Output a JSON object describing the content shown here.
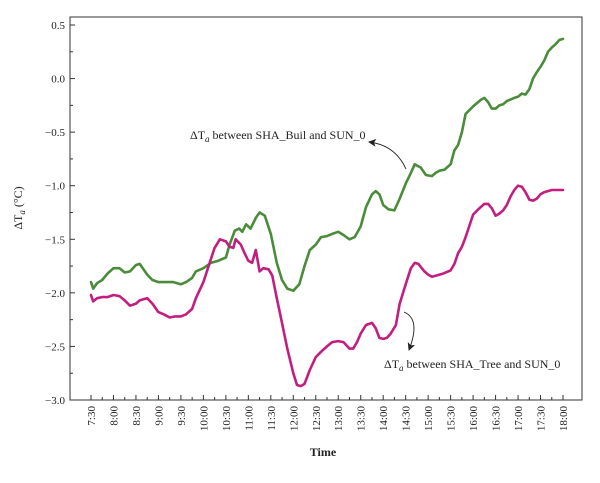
{
  "chart_data": {
    "type": "line",
    "xlabel": "Time",
    "ylabel_symbol": "ΔT",
    "ylabel_sub": "a",
    "ylabel_unit": "(°C)",
    "ylim": [
      -3.0,
      0.5
    ],
    "yticks": [
      0.5,
      0.0,
      -0.5,
      -1.0,
      -1.5,
      -2.0,
      -2.5,
      -3.0
    ],
    "ytick_labels": [
      "0.5",
      "0.0",
      "−0.5",
      "−1.0",
      "−1.5",
      "−2.0",
      "−2.5",
      "−3.0"
    ],
    "xlim": [
      "7:30",
      "18:00"
    ],
    "xtick_labels": [
      "7:30",
      "8:00",
      "8:30",
      "9:00",
      "9:30",
      "10:00",
      "10:30",
      "11:00",
      "11:30",
      "12:00",
      "12:30",
      "13:00",
      "13:30",
      "14:00",
      "14:30",
      "15:00",
      "15:30",
      "16:00",
      "16:30",
      "17:00",
      "17:30",
      "18:00"
    ],
    "grid": false,
    "series": [
      {
        "annotation_prefix": "ΔT",
        "annotation_sub": "a",
        "annotation_rest": " between SHA_Buil and SUN_0",
        "color": "#4a8c3a",
        "points": [
          [
            "7:30",
            -1.9
          ],
          [
            "7:33",
            -1.96
          ],
          [
            "7:38",
            -1.91
          ],
          [
            "7:45",
            -1.88
          ],
          [
            "7:52",
            -1.82
          ],
          [
            "8:00",
            -1.77
          ],
          [
            "8:08",
            -1.77
          ],
          [
            "8:15",
            -1.81
          ],
          [
            "8:22",
            -1.8
          ],
          [
            "8:30",
            -1.74
          ],
          [
            "8:35",
            -1.73
          ],
          [
            "8:45",
            -1.83
          ],
          [
            "8:52",
            -1.88
          ],
          [
            "9:00",
            -1.9
          ],
          [
            "9:10",
            -1.9
          ],
          [
            "9:20",
            -1.9
          ],
          [
            "9:30",
            -1.92
          ],
          [
            "9:37",
            -1.9
          ],
          [
            "9:45",
            -1.86
          ],
          [
            "9:50",
            -1.8
          ],
          [
            "10:00",
            -1.77
          ],
          [
            "10:10",
            -1.72
          ],
          [
            "10:20",
            -1.7
          ],
          [
            "10:30",
            -1.67
          ],
          [
            "10:35",
            -1.55
          ],
          [
            "10:42",
            -1.42
          ],
          [
            "10:48",
            -1.4
          ],
          [
            "10:52",
            -1.43
          ],
          [
            "10:57",
            -1.36
          ],
          [
            "11:03",
            -1.4
          ],
          [
            "11:10",
            -1.3
          ],
          [
            "11:15",
            -1.25
          ],
          [
            "11:22",
            -1.28
          ],
          [
            "11:30",
            -1.45
          ],
          [
            "11:38",
            -1.72
          ],
          [
            "11:45",
            -1.88
          ],
          [
            "11:52",
            -1.96
          ],
          [
            "12:00",
            -1.98
          ],
          [
            "12:08",
            -1.92
          ],
          [
            "12:15",
            -1.75
          ],
          [
            "12:22",
            -1.6
          ],
          [
            "12:30",
            -1.55
          ],
          [
            "12:37",
            -1.48
          ],
          [
            "12:45",
            -1.47
          ],
          [
            "12:52",
            -1.45
          ],
          [
            "13:00",
            -1.43
          ],
          [
            "13:07",
            -1.46
          ],
          [
            "13:15",
            -1.5
          ],
          [
            "13:22",
            -1.48
          ],
          [
            "13:30",
            -1.38
          ],
          [
            "13:37",
            -1.2
          ],
          [
            "13:45",
            -1.08
          ],
          [
            "13:50",
            -1.05
          ],
          [
            "13:55",
            -1.08
          ],
          [
            "14:00",
            -1.18
          ],
          [
            "14:07",
            -1.22
          ],
          [
            "14:15",
            -1.23
          ],
          [
            "14:22",
            -1.12
          ],
          [
            "14:30",
            -0.98
          ],
          [
            "14:37",
            -0.88
          ],
          [
            "14:42",
            -0.8
          ],
          [
            "14:50",
            -0.83
          ],
          [
            "14:57",
            -0.9
          ],
          [
            "15:05",
            -0.91
          ],
          [
            "15:10",
            -0.88
          ],
          [
            "15:15",
            -0.86
          ],
          [
            "15:22",
            -0.85
          ],
          [
            "15:30",
            -0.8
          ],
          [
            "15:35",
            -0.67
          ],
          [
            "15:40",
            -0.62
          ],
          [
            "15:45",
            -0.5
          ],
          [
            "15:50",
            -0.33
          ],
          [
            "16:00",
            -0.26
          ],
          [
            "16:10",
            -0.2
          ],
          [
            "16:15",
            -0.18
          ],
          [
            "16:20",
            -0.22
          ],
          [
            "16:25",
            -0.28
          ],
          [
            "16:30",
            -0.28
          ],
          [
            "16:35",
            -0.25
          ],
          [
            "16:40",
            -0.24
          ],
          [
            "16:45",
            -0.21
          ],
          [
            "16:55",
            -0.18
          ],
          [
            "17:00",
            -0.17
          ],
          [
            "17:05",
            -0.14
          ],
          [
            "17:10",
            -0.15
          ],
          [
            "17:15",
            -0.1
          ],
          [
            "17:20",
            0.0
          ],
          [
            "17:25",
            0.06
          ],
          [
            "17:30",
            0.11
          ],
          [
            "17:35",
            0.17
          ],
          [
            "17:40",
            0.25
          ],
          [
            "17:45",
            0.29
          ],
          [
            "17:50",
            0.32
          ],
          [
            "17:55",
            0.36
          ],
          [
            "18:00",
            0.37
          ]
        ]
      },
      {
        "annotation_prefix": "ΔT",
        "annotation_sub": "a",
        "annotation_rest": " between SHA_Tree and SUN_0",
        "color": "#c21e80",
        "points": [
          [
            "7:30",
            -2.02
          ],
          [
            "7:33",
            -2.08
          ],
          [
            "7:38",
            -2.05
          ],
          [
            "7:45",
            -2.04
          ],
          [
            "7:52",
            -2.04
          ],
          [
            "8:00",
            -2.02
          ],
          [
            "8:08",
            -2.03
          ],
          [
            "8:15",
            -2.07
          ],
          [
            "8:22",
            -2.12
          ],
          [
            "8:30",
            -2.1
          ],
          [
            "8:35",
            -2.07
          ],
          [
            "8:40",
            -2.06
          ],
          [
            "8:45",
            -2.05
          ],
          [
            "8:52",
            -2.1
          ],
          [
            "9:00",
            -2.18
          ],
          [
            "9:07",
            -2.2
          ],
          [
            "9:15",
            -2.23
          ],
          [
            "9:22",
            -2.22
          ],
          [
            "9:30",
            -2.22
          ],
          [
            "9:37",
            -2.2
          ],
          [
            "9:45",
            -2.15
          ],
          [
            "9:50",
            -2.05
          ],
          [
            "10:00",
            -1.9
          ],
          [
            "10:07",
            -1.75
          ],
          [
            "10:15",
            -1.58
          ],
          [
            "10:22",
            -1.5
          ],
          [
            "10:30",
            -1.52
          ],
          [
            "10:35",
            -1.57
          ],
          [
            "10:40",
            -1.58
          ],
          [
            "10:43",
            -1.5
          ],
          [
            "10:50",
            -1.55
          ],
          [
            "10:55",
            -1.63
          ],
          [
            "11:00",
            -1.7
          ],
          [
            "11:05",
            -1.72
          ],
          [
            "11:10",
            -1.6
          ],
          [
            "11:15",
            -1.8
          ],
          [
            "11:20",
            -1.77
          ],
          [
            "11:27",
            -1.78
          ],
          [
            "11:32",
            -1.84
          ],
          [
            "11:38",
            -2.05
          ],
          [
            "11:45",
            -2.28
          ],
          [
            "11:52",
            -2.52
          ],
          [
            "12:00",
            -2.75
          ],
          [
            "12:05",
            -2.86
          ],
          [
            "12:10",
            -2.87
          ],
          [
            "12:15",
            -2.85
          ],
          [
            "12:22",
            -2.72
          ],
          [
            "12:30",
            -2.6
          ],
          [
            "12:37",
            -2.55
          ],
          [
            "12:45",
            -2.5
          ],
          [
            "12:52",
            -2.46
          ],
          [
            "13:00",
            -2.45
          ],
          [
            "13:07",
            -2.46
          ],
          [
            "13:15",
            -2.52
          ],
          [
            "13:20",
            -2.52
          ],
          [
            "13:25",
            -2.46
          ],
          [
            "13:30",
            -2.38
          ],
          [
            "13:37",
            -2.3
          ],
          [
            "13:45",
            -2.28
          ],
          [
            "13:50",
            -2.33
          ],
          [
            "13:55",
            -2.42
          ],
          [
            "14:00",
            -2.43
          ],
          [
            "14:05",
            -2.42
          ],
          [
            "14:10",
            -2.38
          ],
          [
            "14:17",
            -2.3
          ],
          [
            "14:22",
            -2.1
          ],
          [
            "14:30",
            -1.92
          ],
          [
            "14:37",
            -1.77
          ],
          [
            "14:42",
            -1.72
          ],
          [
            "14:47",
            -1.73
          ],
          [
            "14:55",
            -1.8
          ],
          [
            "15:00",
            -1.83
          ],
          [
            "15:05",
            -1.85
          ],
          [
            "15:10",
            -1.84
          ],
          [
            "15:20",
            -1.82
          ],
          [
            "15:30",
            -1.79
          ],
          [
            "15:35",
            -1.73
          ],
          [
            "15:40",
            -1.63
          ],
          [
            "15:45",
            -1.57
          ],
          [
            "15:50",
            -1.48
          ],
          [
            "16:00",
            -1.27
          ],
          [
            "16:07",
            -1.22
          ],
          [
            "16:15",
            -1.17
          ],
          [
            "16:20",
            -1.17
          ],
          [
            "16:25",
            -1.21
          ],
          [
            "16:30",
            -1.28
          ],
          [
            "16:35",
            -1.26
          ],
          [
            "16:40",
            -1.23
          ],
          [
            "16:45",
            -1.18
          ],
          [
            "16:50",
            -1.1
          ],
          [
            "16:55",
            -1.04
          ],
          [
            "17:00",
            -1.0
          ],
          [
            "17:05",
            -1.01
          ],
          [
            "17:10",
            -1.06
          ],
          [
            "17:15",
            -1.13
          ],
          [
            "17:20",
            -1.14
          ],
          [
            "17:25",
            -1.12
          ],
          [
            "17:30",
            -1.08
          ],
          [
            "17:35",
            -1.06
          ],
          [
            "17:40",
            -1.05
          ],
          [
            "17:45",
            -1.04
          ],
          [
            "17:50",
            -1.04
          ],
          [
            "17:55",
            -1.04
          ],
          [
            "18:00",
            -1.04
          ]
        ]
      }
    ]
  }
}
